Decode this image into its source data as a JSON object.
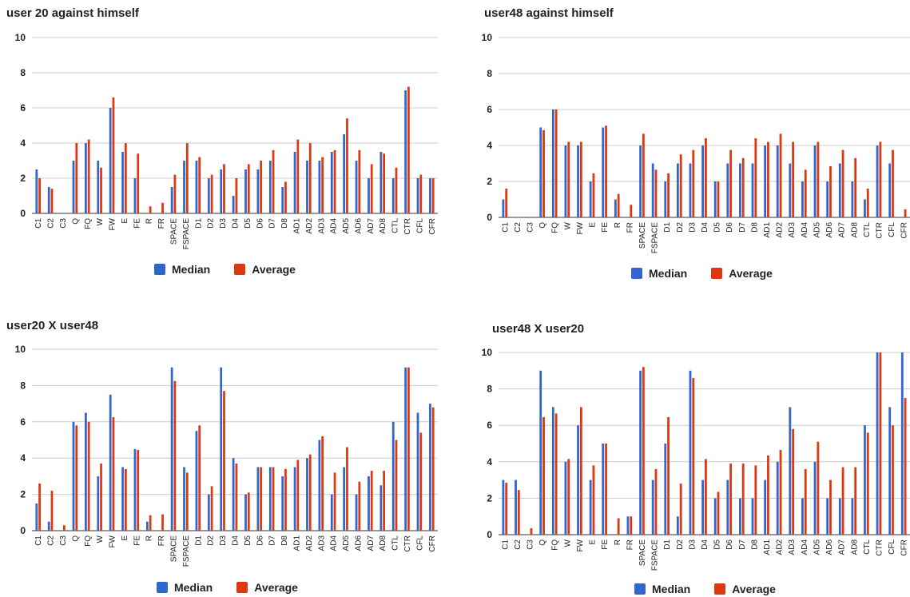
{
  "colors": {
    "median": "#3366cc",
    "average": "#dc3912",
    "grid": "#cccccc",
    "axis": "#333333"
  },
  "legend": {
    "median_label": "Median",
    "average_label": "Average"
  },
  "chart_data": [
    {
      "type": "bar",
      "title": "user 20 against himself",
      "xlabel": "",
      "ylabel": "",
      "ylim": [
        0,
        10
      ],
      "yticks": [
        0,
        2,
        4,
        6,
        8,
        10
      ],
      "grid": true,
      "legend_position": "bottom",
      "categories": [
        "C1",
        "C2",
        "C3",
        "Q",
        "FQ",
        "W",
        "FW",
        "E",
        "FE",
        "R",
        "FR",
        "SPACE",
        "FSPACE",
        "D1",
        "D2",
        "D3",
        "D4",
        "D5",
        "D6",
        "D7",
        "D8",
        "AD1",
        "AD2",
        "AD3",
        "AD4",
        "AD5",
        "AD6",
        "AD7",
        "AD8",
        "CTL",
        "CTR",
        "CFL",
        "CFR"
      ],
      "series": [
        {
          "name": "Median",
          "values": [
            2.5,
            1.5,
            0,
            3,
            4,
            3,
            6,
            3.5,
            2,
            0,
            0,
            1.5,
            3,
            3,
            2,
            2.5,
            1,
            2.5,
            2.5,
            3,
            1.5,
            3.5,
            3,
            3,
            3.5,
            4.5,
            3,
            2,
            3.5,
            2,
            7,
            2,
            2
          ]
        },
        {
          "name": "Average",
          "values": [
            2,
            1.4,
            0,
            4,
            4.2,
            2.6,
            6.6,
            4,
            3.4,
            0.4,
            0.6,
            2.2,
            4,
            3.2,
            2.2,
            2.8,
            2,
            2.8,
            3,
            3.6,
            1.8,
            4.2,
            4,
            3.2,
            3.6,
            5.4,
            3.6,
            2.8,
            3.4,
            2.6,
            7.2,
            2.2,
            2
          ]
        }
      ]
    },
    {
      "type": "bar",
      "title": "user48 against himself",
      "xlabel": "",
      "ylabel": "",
      "ylim": [
        0,
        10
      ],
      "yticks": [
        0,
        2,
        4,
        6,
        8,
        10
      ],
      "grid": true,
      "legend_position": "bottom",
      "categories": [
        "C1",
        "C2",
        "C3",
        "Q",
        "FQ",
        "W",
        "FW",
        "E",
        "FE",
        "R",
        "FR",
        "SPACE",
        "FSPACE",
        "D1",
        "D2",
        "D3",
        "D4",
        "D5",
        "D6",
        "D7",
        "D8",
        "AD1",
        "AD2",
        "AD3",
        "AD4",
        "AD5",
        "AD6",
        "AD7",
        "AD8",
        "CTL",
        "CTR",
        "CFL",
        "CFR"
      ],
      "series": [
        {
          "name": "Median",
          "values": [
            1,
            0,
            0,
            5,
            6,
            4,
            4,
            2,
            5,
            1,
            0,
            4,
            3,
            2,
            3,
            3,
            4,
            2,
            3,
            3,
            3,
            4,
            4,
            3,
            2,
            4,
            2,
            3,
            2,
            1,
            4,
            3,
            0
          ]
        },
        {
          "name": "Average",
          "values": [
            1.6,
            0,
            0,
            4.85,
            6,
            4.2,
            4.2,
            2.45,
            5.1,
            1.3,
            0.7,
            4.65,
            2.65,
            2.45,
            3.5,
            3.75,
            4.4,
            2,
            3.75,
            3.3,
            4.4,
            4.2,
            4.65,
            4.2,
            2.65,
            4.2,
            2.85,
            3.75,
            3.3,
            1.6,
            4.2,
            3.75,
            0.45
          ]
        }
      ]
    },
    {
      "type": "bar",
      "title": "user20 X user48",
      "xlabel": "",
      "ylabel": "",
      "ylim": [
        0,
        10
      ],
      "yticks": [
        0,
        2,
        4,
        6,
        8,
        10
      ],
      "grid": true,
      "legend_position": "bottom",
      "categories": [
        "C1",
        "C2",
        "C3",
        "Q",
        "FQ",
        "W",
        "FW",
        "E",
        "FE",
        "R",
        "FR",
        "SPACE",
        "FSPACE",
        "D1",
        "D2",
        "D3",
        "D4",
        "D5",
        "D6",
        "D7",
        "D8",
        "AD1",
        "AD2",
        "AD3",
        "AD4",
        "AD5",
        "AD6",
        "AD7",
        "AD8",
        "CTL",
        "CTR",
        "CFL",
        "CFR"
      ],
      "series": [
        {
          "name": "Median",
          "values": [
            1.5,
            0.5,
            0,
            6,
            6.5,
            3,
            7.5,
            3.5,
            4.5,
            0.5,
            0,
            9,
            3.5,
            5.5,
            2,
            9,
            4,
            2,
            3.5,
            3.5,
            3,
            3.5,
            4,
            5,
            2,
            3.5,
            2,
            3,
            2.5,
            6,
            9,
            6.5,
            7
          ]
        },
        {
          "name": "Average",
          "values": [
            2.6,
            2.2,
            0.3,
            5.8,
            6,
            3.7,
            6.25,
            3.4,
            4.45,
            0.85,
            0.9,
            8.25,
            3.2,
            5.8,
            2.45,
            7.7,
            3.7,
            2.1,
            3.5,
            3.5,
            3.4,
            3.9,
            4.2,
            5.2,
            3.2,
            4.6,
            2.7,
            3.3,
            3.3,
            5,
            9,
            5.4,
            6.8
          ]
        }
      ]
    },
    {
      "type": "bar",
      "title": "user48 X user20",
      "xlabel": "",
      "ylabel": "",
      "ylim": [
        0,
        10
      ],
      "yticks": [
        0,
        2,
        4,
        6,
        8,
        10
      ],
      "grid": true,
      "legend_position": "bottom",
      "categories": [
        "C1",
        "C2",
        "C3",
        "Q",
        "FQ",
        "W",
        "FW",
        "E",
        "FE",
        "R",
        "FR",
        "SPACE",
        "FSPACE",
        "D1",
        "D2",
        "D3",
        "D4",
        "D5",
        "D6",
        "D7",
        "D8",
        "AD1",
        "AD2",
        "AD3",
        "AD4",
        "AD5",
        "AD6",
        "AD7",
        "AD8",
        "CTL",
        "CTR",
        "CFL",
        "CFR"
      ],
      "series": [
        {
          "name": "Median",
          "values": [
            3,
            3,
            0,
            9,
            7,
            4,
            6,
            3,
            5,
            0,
            1,
            9,
            3,
            5,
            1,
            9,
            3,
            2,
            3,
            2,
            2,
            3,
            4,
            7,
            2,
            4,
            2,
            2,
            2,
            6,
            10,
            7,
            10
          ]
        },
        {
          "name": "Average",
          "values": [
            2.85,
            2.45,
            0.35,
            6.45,
            6.65,
            4.15,
            7,
            3.8,
            5,
            0.9,
            1,
            9.2,
            3.6,
            6.45,
            2.8,
            8.6,
            4.15,
            2.35,
            3.9,
            3.9,
            3.8,
            4.35,
            4.65,
            5.8,
            3.6,
            5.1,
            3,
            3.7,
            3.7,
            5.6,
            10,
            6,
            7.5
          ]
        }
      ]
    }
  ]
}
